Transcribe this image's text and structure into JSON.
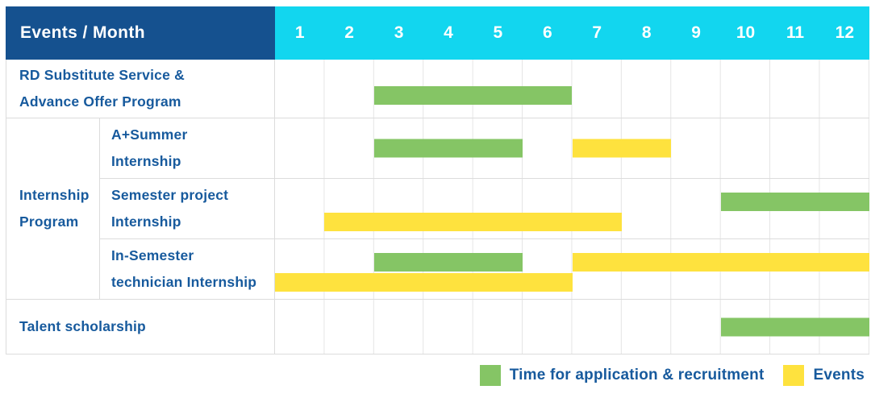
{
  "header": {
    "title": "Events / Month",
    "months": [
      "1",
      "2",
      "3",
      "4",
      "5",
      "6",
      "7",
      "8",
      "9",
      "10",
      "11",
      "12"
    ]
  },
  "group": {
    "label": "Internship\nProgram"
  },
  "rows": [
    {
      "label": "RD Substitute Service &\nAdvance Offer Program",
      "bars": [
        {
          "type": "green",
          "start": 3,
          "end": 6,
          "lane": "mid"
        }
      ]
    },
    {
      "label": "A+Summer\nInternship",
      "bars": [
        {
          "type": "green",
          "start": 3,
          "end": 5,
          "lane": "center"
        },
        {
          "type": "yellow",
          "start": 7,
          "end": 8,
          "lane": "center"
        }
      ]
    },
    {
      "label": "Semester project\nInternship",
      "bars": [
        {
          "type": "green",
          "start": 10,
          "end": 12,
          "lane": "upper"
        },
        {
          "type": "yellow",
          "start": 2,
          "end": 7,
          "lane": "lower"
        }
      ]
    },
    {
      "label": "In-Semester\ntechnician Internship",
      "bars": [
        {
          "type": "green",
          "start": 3,
          "end": 5,
          "lane": "upper"
        },
        {
          "type": "yellow",
          "start": 7,
          "end": 12,
          "lane": "upper"
        },
        {
          "type": "yellow",
          "start": 1,
          "end": 6,
          "lane": "lower"
        }
      ]
    },
    {
      "label": "Talent scholarship",
      "bars": [
        {
          "type": "green",
          "start": 10,
          "end": 12,
          "lane": "center"
        }
      ]
    }
  ],
  "legend": [
    {
      "type": "green",
      "label": "Time for application & recruitment"
    },
    {
      "type": "yellow",
      "label": "Events"
    }
  ],
  "colors": {
    "header_bg": "#15518f",
    "months_bg": "#12d6ef",
    "header_text": "#ffffff",
    "label_text": "#175a9d",
    "green": "#85c565",
    "yellow": "#fee23e",
    "grid_line": "#dcdcdc"
  },
  "chart_data": {
    "type": "bar",
    "subtype": "gantt-schedule",
    "title": "Events / Month",
    "x_axis": {
      "label": "Month",
      "ticks": [
        1,
        2,
        3,
        4,
        5,
        6,
        7,
        8,
        9,
        10,
        11,
        12
      ],
      "range": [
        1,
        12
      ]
    },
    "legend_entries": [
      "Time for application & recruitment",
      "Events"
    ],
    "legend_position": "bottom-right",
    "grid": true,
    "tasks": [
      {
        "name": "RD Substitute Service & Advance Offer Program",
        "group": null,
        "application_recruitment_months": [
          [
            3,
            6
          ]
        ],
        "events_months": []
      },
      {
        "name": "A+Summer Internship",
        "group": "Internship Program",
        "application_recruitment_months": [
          [
            3,
            5
          ]
        ],
        "events_months": [
          [
            7,
            8
          ]
        ]
      },
      {
        "name": "Semester project Internship",
        "group": "Internship Program",
        "application_recruitment_months": [
          [
            10,
            12
          ]
        ],
        "events_months": [
          [
            2,
            7
          ]
        ]
      },
      {
        "name": "In-Semester technician Internship",
        "group": "Internship Program",
        "application_recruitment_months": [
          [
            3,
            5
          ]
        ],
        "events_months": [
          [
            7,
            12
          ],
          [
            1,
            6
          ]
        ]
      },
      {
        "name": "Talent scholarship",
        "group": null,
        "application_recruitment_months": [
          [
            10,
            12
          ]
        ],
        "events_months": []
      }
    ]
  }
}
